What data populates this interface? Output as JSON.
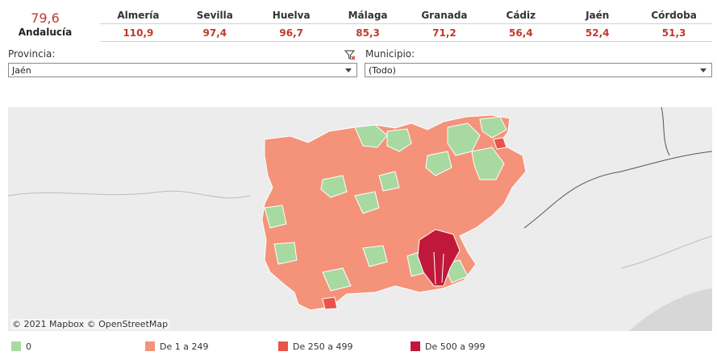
{
  "summary": {
    "value": "79,6",
    "label": "Andalucía"
  },
  "provinces": [
    {
      "name": "Almería",
      "value": "110,9"
    },
    {
      "name": "Sevilla",
      "value": "97,4"
    },
    {
      "name": "Huelva",
      "value": "96,7"
    },
    {
      "name": "Málaga",
      "value": "85,3"
    },
    {
      "name": "Granada",
      "value": "71,2"
    },
    {
      "name": "Cádiz",
      "value": "56,4"
    },
    {
      "name": "Jaén",
      "value": "52,4"
    },
    {
      "name": "Córdoba",
      "value": "51,3"
    }
  ],
  "filters": {
    "provincia": {
      "label": "Provincia:",
      "value": "Jaén"
    },
    "municipio": {
      "label": "Municipio:",
      "value": "(Todo)"
    }
  },
  "map": {
    "attribution": "© 2021 Mapbox © OpenStreetMap"
  },
  "legend": [
    {
      "label": "0",
      "color": "#a8d9a0"
    },
    {
      "label": "De 1 a 249",
      "color": "#f4937a"
    },
    {
      "label": "De 250 a 499",
      "color": "#e8544a"
    },
    {
      "label": "De 500 a 999",
      "color": "#c0183a"
    }
  ],
  "colors": {
    "accent": "#c0392b",
    "map_bg": "#ececec",
    "border": "#8a8a8a"
  }
}
